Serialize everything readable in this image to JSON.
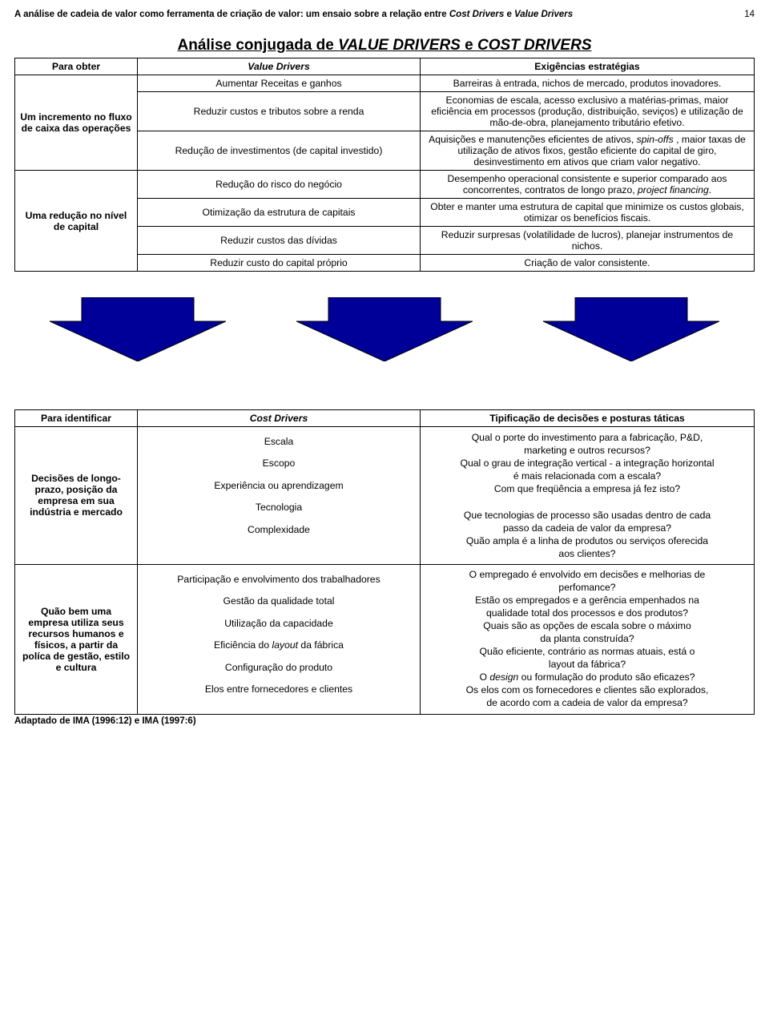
{
  "page": {
    "header_text": "A análise de cadeia de valor como ferramenta de criação de valor: um ensaio sobre a relação entre ",
    "header_ital": "Cost Drivers",
    "header_text2": " e ",
    "header_ital2": "Value Drivers",
    "number": "14"
  },
  "title": {
    "pre": "Análise conjugada de ",
    "i1": "VALUE DRIVERS",
    "mid": " e ",
    "i2": "COST DRIVERS"
  },
  "t1": {
    "h": [
      "Para obter",
      "Value Drivers",
      "Exigências estratégias"
    ],
    "r1": {
      "c2": "Aumentar Receitas e ganhos",
      "c3": "Barreiras à entrada, nichos de mercado, produtos inovadores."
    },
    "r2": {
      "c1": "Um incremento no fluxo de caixa das operações",
      "c2": "Reduzir custos e tributos sobre a renda",
      "c3": "Economias de escala, acesso exclusivo a matérias-primas, maior eficiência em processos (produção, distribuição, seviços) e utilização de mão-de-obra, planejamento tributário efetivo."
    },
    "r3": {
      "c2": "Redução de investimentos (de capital investido)",
      "c3_a": "Aquisições e manutenções eficientes de ativos, ",
      "c3_i": "spin-offs",
      "c3_b": " , maior taxas de utilização de ativos fixos, gestão eficiente do capital de giro, desinvestimento em ativos que criam valor negativo."
    },
    "r4": {
      "c2": "Redução do risco do negócio",
      "c3_a": "Desempenho operacional consistente e superior comparado aos concorrentes, contratos de longo prazo, ",
      "c3_i": "project financing",
      "c3_b": "."
    },
    "r5": {
      "c1": "Uma redução no nível de capital",
      "c2": "Otimização da estrutura de capitais",
      "c3": "Obter e manter uma estrutura de capital que minimize os custos globais, otimizar os benefícios fiscais."
    },
    "r6": {
      "c2": "Reduzir custos das dívidas",
      "c3": "Reduzir surpresas (volatilidade de lucros), planejar instrumentos de nichos."
    },
    "r7": {
      "c2": "Reduzir custo do capital próprio",
      "c3": "Criação de valor consistente."
    }
  },
  "arrow": {
    "fill": "#000099",
    "stroke": "#000000"
  },
  "t2": {
    "h": [
      "Para identificar",
      "Cost Drivers",
      "Tipificação de decisões e posturas táticas"
    ],
    "b1": {
      "c1": "Decisões de longo-prazo, posição da empresa em sua indústria e mercado",
      "c2": [
        "Escala",
        "Escopo",
        "Experiência ou aprendizagem",
        "Tecnologia",
        "Complexidade"
      ],
      "c3": [
        "Qual o porte do investimento para a fabricação, P&D,",
        "marketing e outros recursos?",
        "Qual o grau de integração vertical - a integração horizontal",
        "é mais relacionada com a escala?",
        "Com que freqüência a empresa já fez isto?",
        "",
        "Que tecnologias de processo são usadas dentro de cada",
        "passo da cadeia de valor da empresa?",
        "Quão ampla é a linha de produtos ou serviços oferecida",
        "aos clientes?"
      ]
    },
    "b2": {
      "c1": "Quão bem uma empresa utiliza seus recursos humanos e físicos, a partir da políca de gestão, estilo e cultura",
      "c2": [
        "Participação e envolvimento dos trabalhadores",
        "Gestão da qualidade total",
        "Utilização da capacidade",
        "Eficiência do <i>layout</i> da fábrica",
        "Configuração do produto",
        "Elos entre fornecedores e clientes"
      ],
      "c3": [
        "O empregado é envolvido em decisões e melhorias de",
        "perfomance?",
        "Estão os empregados e a gerência empenhados na",
        "qualidade total dos processos e dos produtos?",
        "Quais são as opções de escala sobre o máximo",
        "da planta construída?",
        "Quão eficiente, contrário as normas atuais, está o",
        "layout da fábrica?",
        "O <i>design</i> ou formulação do produto são eficazes?",
        "Os elos com os fornecedores e clientes são explorados,",
        "de acordo com a cadeia de valor da empresa?"
      ]
    }
  },
  "source": "Adaptado de IMA (1996:12) e IMA (1997:6)"
}
